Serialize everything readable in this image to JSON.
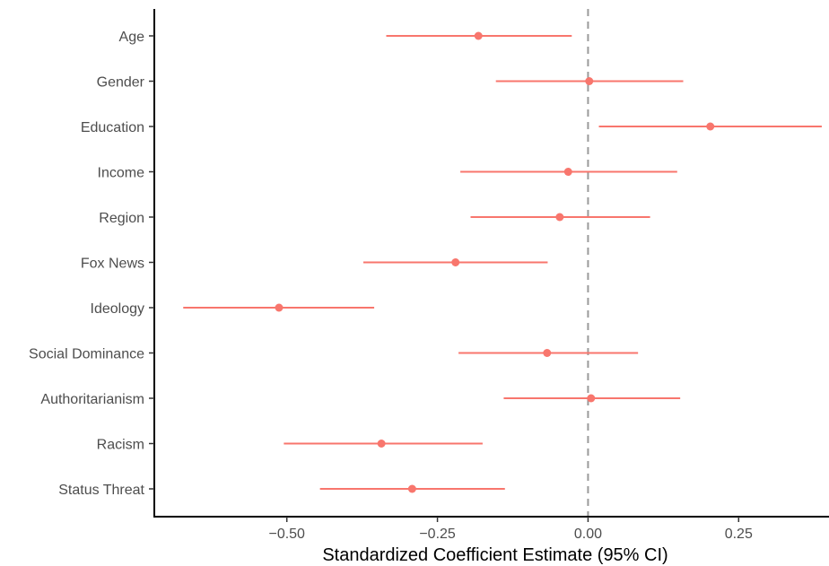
{
  "chart_data": {
    "type": "forest",
    "xlabel": "Standardized Coefficient Estimate (95% CI)",
    "ylabel": "",
    "xlim": [
      -0.72,
      0.4
    ],
    "x_ticks": [
      -0.5,
      -0.25,
      0,
      0.25
    ],
    "x_tick_labels": [
      "−0.50",
      "−0.25",
      "0.00",
      "0.25"
    ],
    "reference_line": 0,
    "grid": false,
    "legend": "none",
    "color": "#f8766d",
    "categories": [
      "Age",
      "Gender",
      "Education",
      "Income",
      "Region",
      "Fox News",
      "Ideology",
      "Social Dominance",
      "Authoritarianism",
      "Racism",
      "Status Threat"
    ],
    "estimates": [
      -0.182,
      0.002,
      0.203,
      -0.033,
      -0.047,
      -0.22,
      -0.513,
      -0.068,
      0.005,
      -0.343,
      -0.292
    ],
    "ci_low": [
      -0.335,
      -0.153,
      0.018,
      -0.212,
      -0.195,
      -0.373,
      -0.672,
      -0.215,
      -0.14,
      -0.505,
      -0.445
    ],
    "ci_high": [
      -0.027,
      0.158,
      0.388,
      0.148,
      0.103,
      -0.067,
      -0.355,
      0.083,
      0.153,
      -0.175,
      -0.138
    ]
  }
}
